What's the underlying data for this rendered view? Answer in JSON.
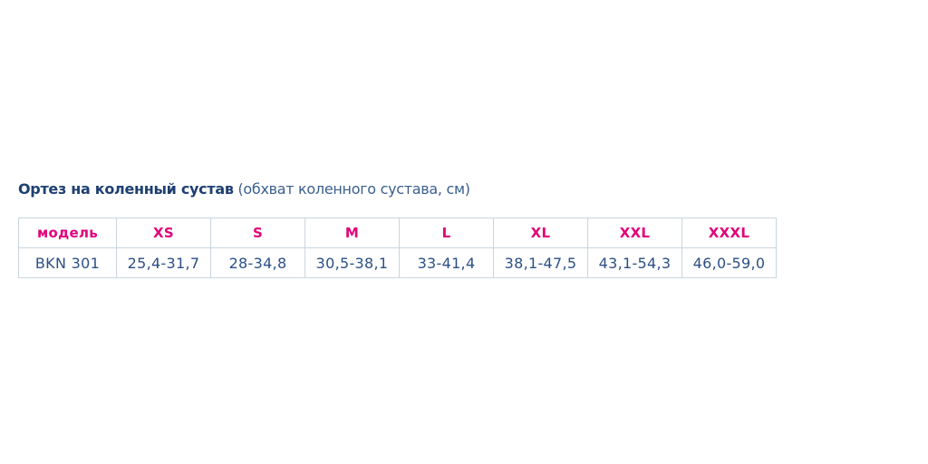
{
  "title": {
    "main": "Ортез на коленный сустав",
    "sub": "(обхват коленного сустава, см)"
  },
  "colors": {
    "title": "#1d3f72",
    "header": "#e2007a",
    "cell": "#2b4f86",
    "border": "#c8d6df"
  },
  "table": {
    "headers": [
      "модель",
      "XS",
      "S",
      "M",
      "L",
      "XL",
      "XXL",
      "XXXL"
    ],
    "rows": [
      [
        "BKN 301",
        "25,4-31,7",
        "28-34,8",
        "30,5-38,1",
        "33-41,4",
        "38,1-47,5",
        "43,1-54,3",
        "46,0-59,0"
      ]
    ]
  }
}
